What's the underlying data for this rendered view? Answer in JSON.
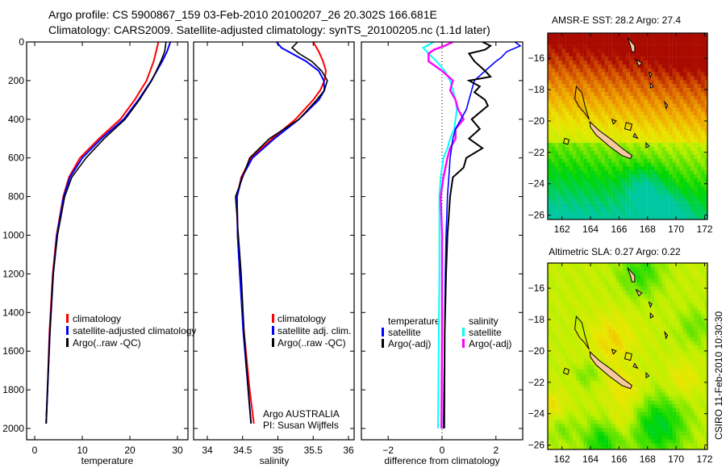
{
  "title_line1": "Argo profile: CS 5900867_159 03-Feb-2010 20100207_26 20.302S 166.681E",
  "title_line2": "Climatology: CARS2009. Satellite-adjusted climatology: synTS_20100205.nc (1.1d later)",
  "footer_stamp": "CSIRO 11-Feb-2010 10:30:30",
  "colors": {
    "climatology": "#ff0000",
    "satellite": "#0000ff",
    "argo": "#000000",
    "sal_satellite": "#00ffff",
    "sal_argo": "#ff00ff",
    "land": "#f8c8a0"
  },
  "chart_data": [
    {
      "type": "line",
      "xlabel": "temperature",
      "ylabel": "",
      "xlim": [
        -1.7,
        32.2
      ],
      "ylim": [
        2000,
        0
      ],
      "xticks": [
        0,
        10,
        20,
        30
      ],
      "yticks": [
        0,
        200,
        400,
        600,
        800,
        1000,
        1200,
        1400,
        1600,
        1800,
        2000
      ],
      "legend": [
        "climatology",
        "satellite-adjusted climatology",
        "Argo(..raw -QC)"
      ],
      "series": [
        {
          "name": "climatology",
          "depth": [
            0,
            50,
            100,
            200,
            300,
            400,
            500,
            600,
            700,
            800,
            1000,
            1200,
            1500,
            1800,
            1975
          ],
          "values": [
            26.0,
            25.5,
            25.0,
            23.5,
            21.0,
            18.0,
            13.5,
            9.5,
            7.2,
            6.0,
            4.6,
            3.8,
            3.1,
            2.7,
            2.4
          ]
        },
        {
          "name": "satellite-adjusted climatology",
          "depth": [
            0,
            50,
            100,
            200,
            300,
            400,
            500,
            600,
            700,
            800,
            1000,
            1200,
            1500,
            1800,
            1975
          ],
          "values": [
            28.5,
            27.8,
            26.8,
            24.5,
            21.8,
            18.7,
            14.0,
            10.0,
            7.4,
            6.1,
            4.7,
            3.9,
            3.2,
            2.7,
            2.4
          ]
        },
        {
          "name": "Argo(..raw -QC)",
          "depth": [
            0,
            50,
            100,
            200,
            300,
            400,
            500,
            600,
            700,
            800,
            1000,
            1200,
            1500,
            1800,
            1975
          ],
          "values": [
            27.6,
            27.3,
            26.5,
            24.6,
            22.0,
            19.0,
            14.6,
            10.8,
            7.8,
            6.3,
            4.8,
            3.9,
            3.2,
            2.7,
            2.4
          ]
        }
      ]
    },
    {
      "type": "line",
      "xlabel": "salinity",
      "ylabel": "",
      "xlim": [
        33.8,
        36.1
      ],
      "ylim": [
        2000,
        0
      ],
      "xticks": [
        34,
        34.5,
        35,
        35.5,
        36
      ],
      "legend": [
        "climatology",
        "satellite adj. clim.",
        "Argo(..raw -QC)"
      ],
      "annotation": [
        "Argo AUSTRALIA",
        "PI: Susan Wijffels"
      ],
      "series": [
        {
          "name": "climatology",
          "depth": [
            0,
            50,
            100,
            150,
            200,
            250,
            300,
            400,
            500,
            600,
            700,
            800,
            1000,
            1200,
            1500,
            1800,
            1975
          ],
          "values": [
            35.5,
            35.58,
            35.64,
            35.68,
            35.66,
            35.6,
            35.5,
            35.25,
            34.92,
            34.62,
            34.48,
            34.42,
            34.43,
            34.46,
            34.52,
            34.6,
            34.66
          ]
        },
        {
          "name": "satellite adj. clim.",
          "depth": [
            0,
            30,
            60,
            100,
            150,
            200,
            250,
            300,
            400,
            500,
            600,
            700,
            800,
            1000,
            1200,
            1500,
            1800,
            1975
          ],
          "values": [
            34.98,
            35.05,
            35.2,
            35.4,
            35.58,
            35.65,
            35.66,
            35.58,
            35.3,
            34.95,
            34.64,
            34.49,
            34.42,
            34.43,
            34.46,
            34.51,
            34.58,
            34.62
          ]
        },
        {
          "name": "Argo(..raw -QC)",
          "depth": [
            0,
            30,
            60,
            100,
            150,
            200,
            250,
            300,
            400,
            500,
            600,
            700,
            800,
            1000,
            1200,
            1500,
            1800,
            1975
          ],
          "values": [
            35.28,
            35.2,
            35.3,
            35.48,
            35.62,
            35.7,
            35.66,
            35.55,
            35.3,
            34.88,
            34.6,
            34.5,
            34.4,
            34.44,
            34.48,
            34.52,
            34.58,
            34.62
          ]
        }
      ]
    },
    {
      "type": "line",
      "xlabel": "difference from climatology",
      "ylabel": "",
      "xlim": [
        -3.0,
        3.0
      ],
      "ylim": [
        2000,
        0
      ],
      "xticks": [
        -2,
        0,
        2
      ],
      "legend_groups": [
        {
          "heading": "temperature",
          "items": [
            "satellite",
            "Argo(-adj)"
          ]
        },
        {
          "heading": "salinity",
          "items": [
            "satellite",
            "Argo(-adj)"
          ]
        }
      ],
      "series": [
        {
          "name": "temperature satellite",
          "depth": [
            0,
            20,
            50,
            80,
            100,
            150,
            200,
            250,
            300,
            350,
            400,
            450,
            500,
            600,
            700,
            800,
            1000,
            1200,
            1500,
            2000
          ],
          "values": [
            2.7,
            2.9,
            2.4,
            2.2,
            2.0,
            1.6,
            1.2,
            1.1,
            1.0,
            0.9,
            0.7,
            0.5,
            0.4,
            0.3,
            0.25,
            0.2,
            0.15,
            0.12,
            0.1,
            0.05
          ]
        },
        {
          "name": "temperature Argo(-adj)",
          "depth": [
            0,
            20,
            40,
            60,
            100,
            150,
            180,
            200,
            230,
            260,
            300,
            330,
            400,
            450,
            500,
            550,
            600,
            650,
            700,
            800,
            1000,
            1200,
            1500,
            2000
          ],
          "values": [
            1.5,
            1.8,
            1.6,
            1.0,
            1.2,
            1.6,
            1.8,
            1.0,
            1.4,
            1.2,
            1.6,
            1.7,
            1.1,
            1.4,
            1.0,
            1.5,
            0.9,
            0.8,
            0.4,
            0.3,
            0.2,
            0.15,
            0.1,
            0.08
          ]
        },
        {
          "name": "salinity satellite",
          "depth": [
            0,
            30,
            60,
            100,
            150,
            200,
            250,
            300,
            350,
            400,
            450,
            500,
            550,
            600,
            700,
            800,
            1000,
            1200,
            1500,
            2000
          ],
          "values": [
            -0.3,
            -0.7,
            -0.5,
            -0.2,
            0.1,
            0.3,
            0.4,
            0.5,
            0.55,
            0.5,
            0.45,
            0.3,
            0.2,
            0.05,
            -0.05,
            -0.1,
            -0.1,
            -0.1,
            -0.12,
            -0.15
          ]
        },
        {
          "name": "salinity Argo(-adj)",
          "depth": [
            0,
            20,
            40,
            60,
            100,
            150,
            200,
            250,
            300,
            350,
            400,
            450,
            500,
            550,
            600,
            700,
            800,
            1000,
            1500,
            2000
          ],
          "values": [
            0.4,
            0.1,
            -0.3,
            -0.5,
            -0.5,
            0.0,
            0.4,
            0.3,
            0.5,
            0.6,
            0.8,
            0.5,
            0.5,
            0.3,
            0.2,
            0.05,
            -0.05,
            0.0,
            0.0,
            -0.02
          ]
        }
      ]
    },
    {
      "type": "heatmap",
      "title": "AMSR-E SST: 28.2 Argo: 27.4",
      "xticks": [
        162,
        164,
        166,
        168,
        170,
        172
      ],
      "yticks": [
        -16,
        -18,
        -20,
        -22,
        -24,
        -26
      ],
      "xlim": [
        161.0,
        172.2
      ],
      "ylim": [
        -26.3,
        -14.4
      ]
    },
    {
      "type": "heatmap",
      "title": "Altimetric SLA: 0.27 Argo: 0.22",
      "xticks": [
        162,
        164,
        166,
        168,
        170,
        172
      ],
      "yticks": [
        -16,
        -18,
        -20,
        -22,
        -24,
        -26
      ],
      "xlim": [
        161.0,
        172.2
      ],
      "ylim": [
        -26.3,
        -14.4
      ]
    }
  ]
}
